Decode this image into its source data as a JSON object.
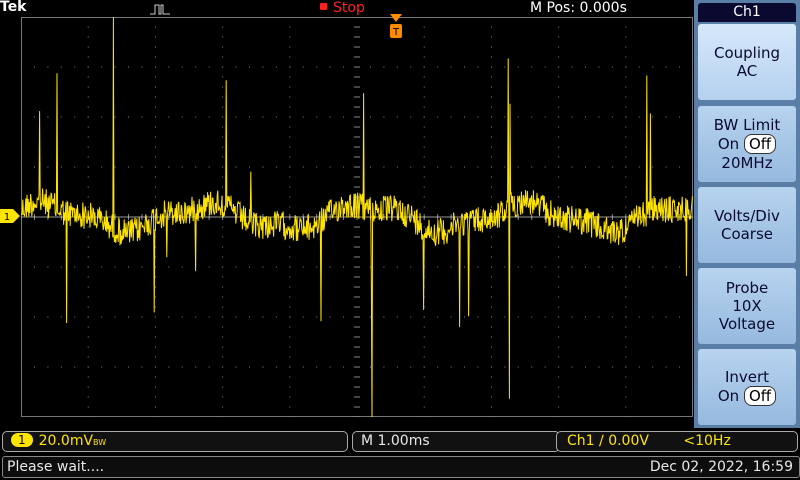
{
  "header": {
    "brand": "Tek",
    "acquisition_state": "Stop",
    "horizontal_position": "M Pos: 0.000s"
  },
  "side_menu": {
    "title": "Ch1",
    "buttons": [
      {
        "line1": "Coupling",
        "line2": "AC"
      },
      {
        "line1": "BW Limit",
        "on": "On",
        "off": "Off",
        "line3": "20MHz"
      },
      {
        "line1": "Volts/Div",
        "line2": "Coarse"
      },
      {
        "line1": "Probe",
        "line2": "10X",
        "line3": "Voltage"
      },
      {
        "line1": "Invert",
        "on": "On",
        "off": "Off"
      }
    ]
  },
  "waveform": {
    "channel_marker": "1",
    "trigger_marker": "T",
    "trace_color": "#ffe400",
    "grid_divisions_x": 10,
    "grid_divisions_y": 8
  },
  "status_bar": {
    "channel": "1",
    "volts_per_div": "20.0mV",
    "bw_suffix": "BW",
    "timebase": "M 1.00ms",
    "trigger_source": "Ch1",
    "trigger_slope": "∕",
    "trigger_level": "0.00V",
    "trigger_freq": "<10Hz"
  },
  "message_bar": {
    "message": "Please wait....",
    "datetime": "Dec 02, 2022, 16:59"
  }
}
